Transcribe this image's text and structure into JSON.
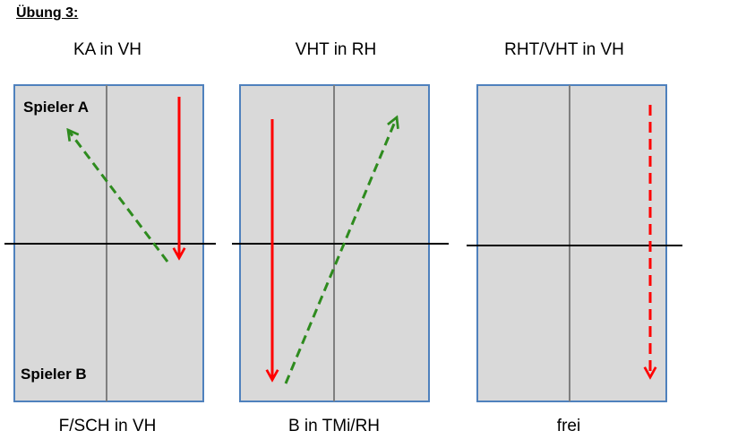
{
  "heading": "Übung 3:",
  "tables": [
    {
      "top_label": "KA in VH",
      "bottom_label": "F/SCH in VH",
      "players": {
        "a": "Spieler A",
        "b": "Spieler B"
      },
      "arrows": [
        {
          "name": "red-solid-arrow",
          "style": "solid",
          "color": "#ff0000"
        },
        {
          "name": "green-dashed-arrow",
          "style": "dashed",
          "color": "#2e8b1e"
        }
      ]
    },
    {
      "top_label": "VHT in RH",
      "bottom_label": "B in TMi/RH",
      "arrows": [
        {
          "name": "red-solid-arrow",
          "style": "solid",
          "color": "#ff0000"
        },
        {
          "name": "green-dashed-arrow",
          "style": "dashed",
          "color": "#2e8b1e"
        }
      ]
    },
    {
      "top_label": "RHT/VHT in VH",
      "bottom_label": "frei",
      "arrows": [
        {
          "name": "red-dashed-arrow",
          "style": "dashed",
          "color": "#ff0000"
        }
      ]
    }
  ],
  "colors": {
    "table_fill": "#d9d9d9",
    "table_border": "#4f81bd",
    "center_line": "#7f7f7f",
    "net": "#000000"
  }
}
